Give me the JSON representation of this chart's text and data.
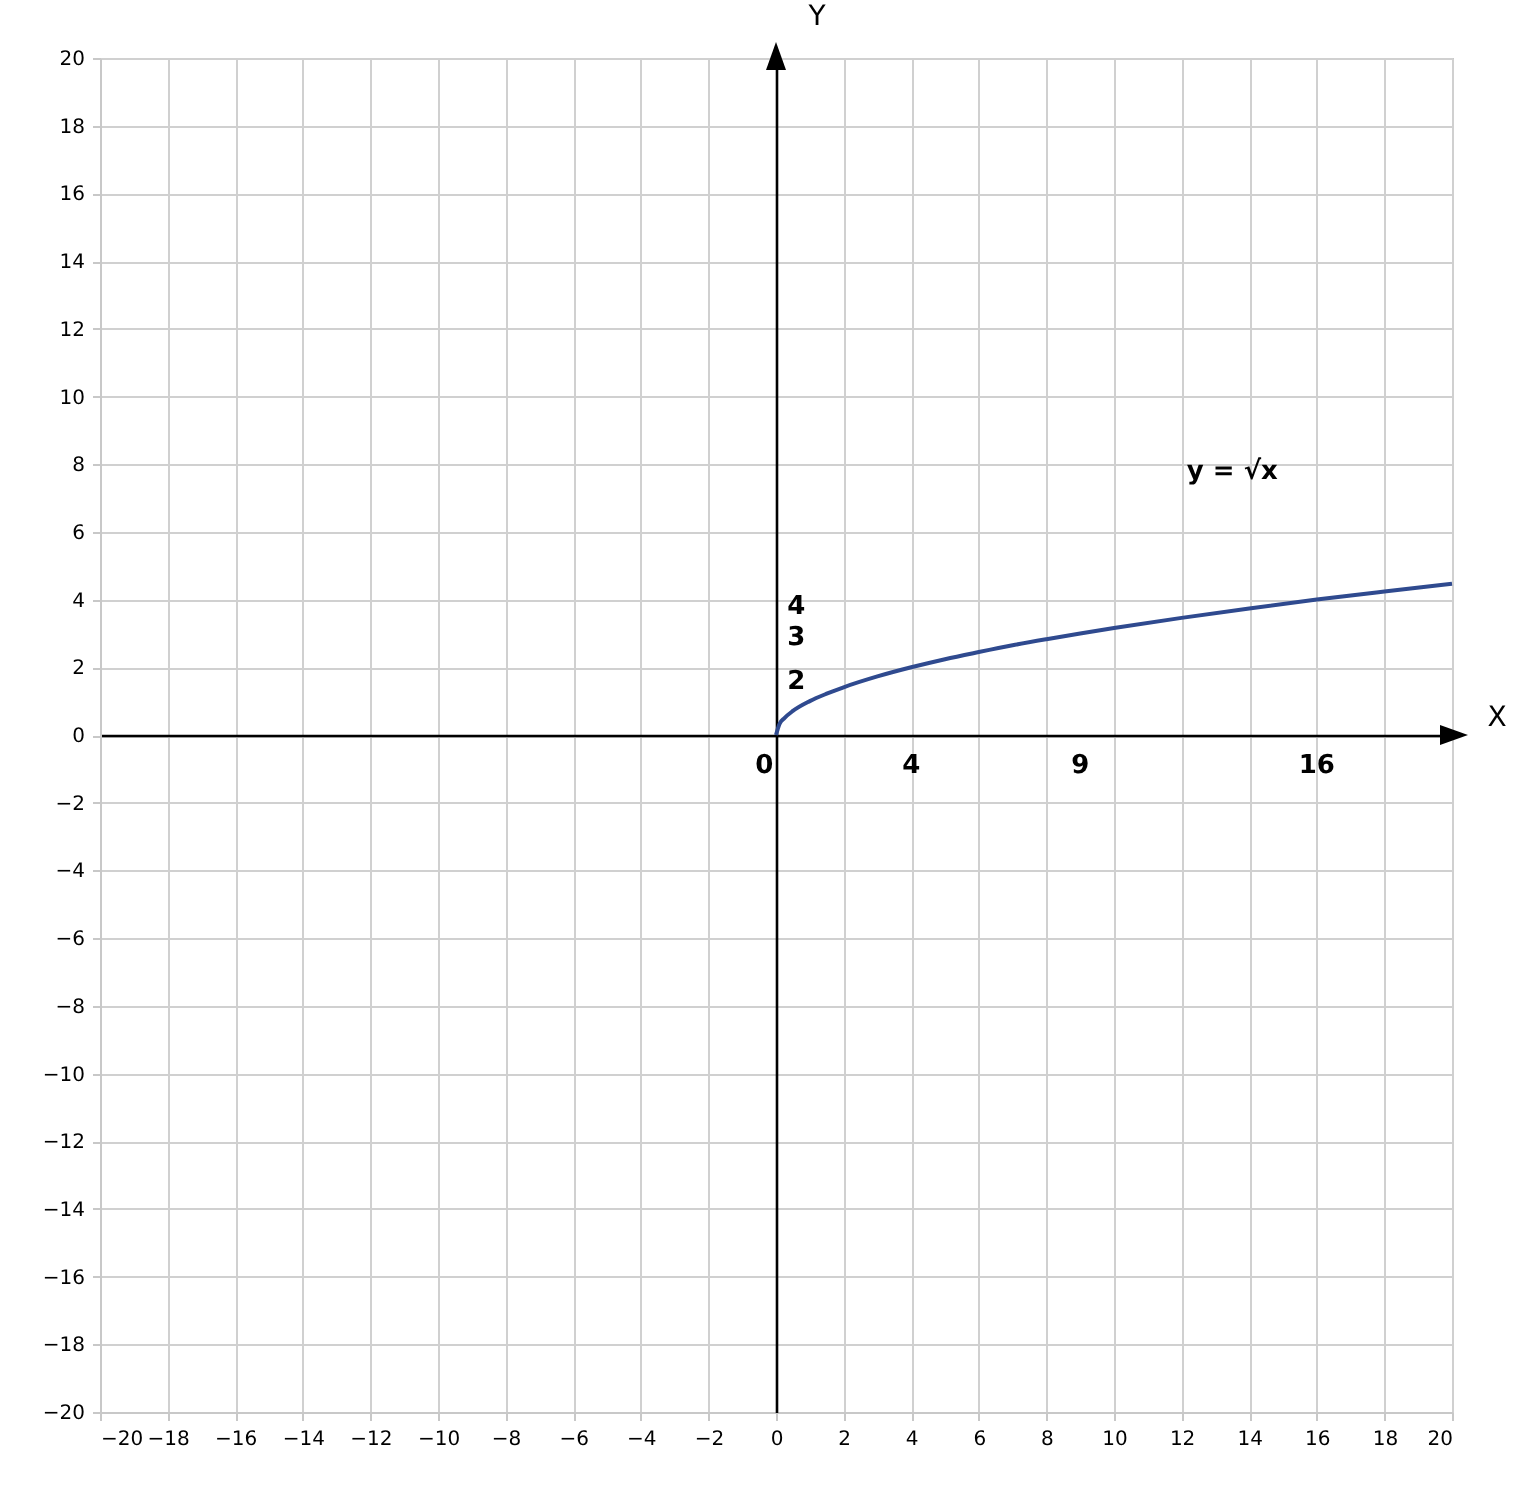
{
  "chart_data": {
    "type": "line",
    "xlabel": "X",
    "ylabel": "Y",
    "x": [
      0,
      0.1,
      0.25,
      0.5,
      1,
      1.5,
      2,
      3,
      4,
      5,
      6,
      7,
      8,
      9,
      10,
      12,
      14,
      16,
      18,
      20
    ],
    "series": [
      {
        "color": "#2f4a8f",
        "values": [
          0,
          0.32,
          0.5,
          0.71,
          1,
          1.22,
          1.41,
          1.73,
          2,
          2.24,
          2.45,
          2.65,
          2.83,
          3,
          3.16,
          3.46,
          3.74,
          4,
          4.24,
          4.47
        ]
      }
    ],
    "xlim": [
      -20,
      20
    ],
    "ylim": [
      -20,
      20
    ],
    "xticks": [
      -20,
      -18,
      -16,
      -14,
      -12,
      -10,
      -8,
      -6,
      -4,
      -2,
      0,
      2,
      4,
      6,
      8,
      10,
      12,
      14,
      16,
      18,
      20
    ],
    "yticks": [
      -20,
      -18,
      -16,
      -14,
      -12,
      -10,
      -8,
      -6,
      -4,
      -2,
      0,
      2,
      4,
      6,
      8,
      10,
      12,
      14,
      16,
      18,
      20
    ],
    "grid": true,
    "marker": "none",
    "line_style": "solid",
    "annotations": [
      "y = √x",
      "4",
      "3",
      "2",
      "0",
      "4",
      "9",
      "16"
    ]
  }
}
